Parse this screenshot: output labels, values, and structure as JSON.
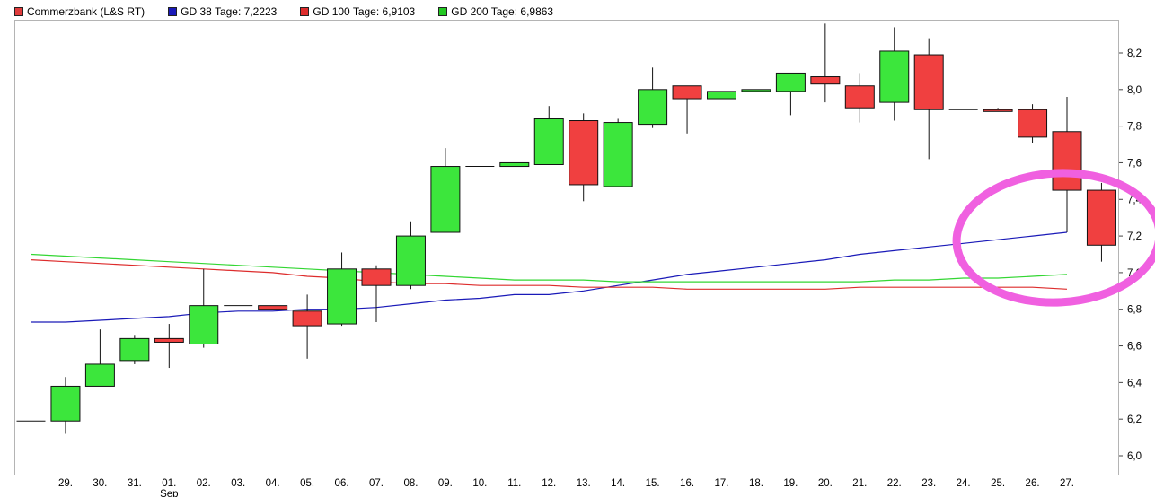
{
  "legend": {
    "main": {
      "label": "Commerzbank (L&S RT)",
      "color": "#e03c3c"
    },
    "ma38": {
      "label": "GD 38 Tage: 7,2223",
      "color": "#1a1ab8"
    },
    "ma100": {
      "label": "GD 100 Tage: 6,9103",
      "color": "#dd2c2c"
    },
    "ma200": {
      "label": "GD 200 Tage: 6,9863",
      "color": "#22c822"
    }
  },
  "colors": {
    "up": "#3ce63c",
    "down": "#f04040",
    "ma38": "#1a1ab8",
    "ma100": "#dd2c2c",
    "ma200": "#33d633",
    "annotation": "#f060e0",
    "grid": "#dcdcdc"
  },
  "chart_data": {
    "type": "candlestick",
    "y_ticks": [
      "6,0",
      "6,2",
      "6,4",
      "6,6",
      "6,8",
      "7,0",
      "7,2",
      "7,4",
      "7,6",
      "7,8",
      "8,0",
      "8,2"
    ],
    "ylim": [
      5.96,
      8.36
    ],
    "x_ticks": [
      "29.",
      "30.",
      "31.",
      "01.",
      "02.",
      "03.",
      "04.",
      "05.",
      "06.",
      "07.",
      "08.",
      "09.",
      "10.",
      "11.",
      "12.",
      "13.",
      "14.",
      "15.",
      "16.",
      "17.",
      "18.",
      "19.",
      "20.",
      "21.",
      "22.",
      "23.",
      "24.",
      "25.",
      "26.",
      "27."
    ],
    "month_marker": {
      "under": "01.",
      "label": "Sep"
    },
    "series_candles": [
      {
        "x": "28.",
        "open": 6.19,
        "high": 6.19,
        "low": 6.19,
        "close": 6.19
      },
      {
        "x": "29.",
        "open": 6.19,
        "high": 6.43,
        "low": 6.12,
        "close": 6.38
      },
      {
        "x": "30.",
        "open": 6.38,
        "high": 6.69,
        "low": 6.38,
        "close": 6.5
      },
      {
        "x": "31.",
        "open": 6.52,
        "high": 6.66,
        "low": 6.5,
        "close": 6.64
      },
      {
        "x": "01.",
        "open": 6.64,
        "high": 6.72,
        "low": 6.48,
        "close": 6.62
      },
      {
        "x": "02.",
        "open": 6.61,
        "high": 7.02,
        "low": 6.59,
        "close": 6.82
      },
      {
        "x": "03.",
        "open": 6.82,
        "high": 6.82,
        "low": 6.82,
        "close": 6.82
      },
      {
        "x": "04.",
        "open": 6.82,
        "high": 6.82,
        "low": 6.8,
        "close": 6.8
      },
      {
        "x": "05.",
        "open": 6.79,
        "high": 6.88,
        "low": 6.53,
        "close": 6.71
      },
      {
        "x": "06.",
        "open": 6.72,
        "high": 7.11,
        "low": 6.71,
        "close": 7.02
      },
      {
        "x": "07.",
        "open": 7.02,
        "high": 7.04,
        "low": 6.73,
        "close": 6.93
      },
      {
        "x": "08.",
        "open": 6.93,
        "high": 7.28,
        "low": 6.91,
        "close": 7.2
      },
      {
        "x": "09.",
        "open": 7.22,
        "high": 7.68,
        "low": 7.22,
        "close": 7.58
      },
      {
        "x": "10.",
        "open": 7.58,
        "high": 7.58,
        "low": 7.58,
        "close": 7.58
      },
      {
        "x": "11.",
        "open": 7.58,
        "high": 7.6,
        "low": 7.58,
        "close": 7.6
      },
      {
        "x": "12.",
        "open": 7.59,
        "high": 7.91,
        "low": 7.59,
        "close": 7.84
      },
      {
        "x": "13.",
        "open": 7.83,
        "high": 7.87,
        "low": 7.39,
        "close": 7.48
      },
      {
        "x": "14.",
        "open": 7.47,
        "high": 7.84,
        "low": 7.47,
        "close": 7.82
      },
      {
        "x": "15.",
        "open": 7.81,
        "high": 8.12,
        "low": 7.79,
        "close": 8.0
      },
      {
        "x": "16.",
        "open": 8.02,
        "high": 8.02,
        "low": 7.76,
        "close": 7.95
      },
      {
        "x": "17.",
        "open": 7.95,
        "high": 7.99,
        "low": 7.95,
        "close": 7.99
      },
      {
        "x": "18.",
        "open": 7.99,
        "high": 8.0,
        "low": 7.99,
        "close": 8.0
      },
      {
        "x": "19.",
        "open": 7.99,
        "high": 8.09,
        "low": 7.86,
        "close": 8.09
      },
      {
        "x": "20.",
        "open": 8.07,
        "high": 8.36,
        "low": 7.93,
        "close": 8.03
      },
      {
        "x": "21.",
        "open": 8.02,
        "high": 8.09,
        "low": 7.82,
        "close": 7.9
      },
      {
        "x": "22.",
        "open": 7.93,
        "high": 8.34,
        "low": 7.83,
        "close": 8.21
      },
      {
        "x": "23.",
        "open": 8.19,
        "high": 8.28,
        "low": 7.62,
        "close": 7.89
      },
      {
        "x": "24.",
        "open": 7.89,
        "high": 7.89,
        "low": 7.89,
        "close": 7.89
      },
      {
        "x": "25.",
        "open": 7.89,
        "high": 7.9,
        "low": 7.88,
        "close": 7.88
      },
      {
        "x": "26.",
        "open": 7.89,
        "high": 7.92,
        "low": 7.71,
        "close": 7.74
      },
      {
        "x": "27.",
        "open": 7.77,
        "high": 7.96,
        "low": 7.22,
        "close": 7.45
      },
      {
        "x": "28.",
        "open": 7.45,
        "high": 7.49,
        "low": 7.06,
        "close": 7.15
      }
    ],
    "series": [
      {
        "name": "GD 38 Tage",
        "values": [
          6.73,
          6.73,
          6.74,
          6.75,
          6.76,
          6.78,
          6.79,
          6.79,
          6.8,
          6.8,
          6.81,
          6.83,
          6.85,
          6.86,
          6.88,
          6.88,
          6.9,
          6.93,
          6.96,
          6.99,
          7.01,
          7.03,
          7.05,
          7.07,
          7.1,
          7.12,
          7.14,
          7.16,
          7.18,
          7.2,
          7.22
        ]
      },
      {
        "name": "GD 100 Tage",
        "values": [
          7.07,
          7.06,
          7.05,
          7.04,
          7.03,
          7.02,
          7.01,
          7.0,
          6.98,
          6.97,
          6.95,
          6.94,
          6.94,
          6.93,
          6.93,
          6.93,
          6.92,
          6.92,
          6.92,
          6.91,
          6.91,
          6.91,
          6.91,
          6.91,
          6.92,
          6.92,
          6.92,
          6.92,
          6.92,
          6.92,
          6.91
        ]
      },
      {
        "name": "GD 200 Tage",
        "values": [
          7.1,
          7.09,
          7.08,
          7.07,
          7.06,
          7.05,
          7.04,
          7.03,
          7.02,
          7.01,
          7.0,
          6.99,
          6.98,
          6.97,
          6.96,
          6.96,
          6.96,
          6.95,
          6.95,
          6.95,
          6.95,
          6.95,
          6.95,
          6.95,
          6.95,
          6.96,
          6.96,
          6.97,
          6.97,
          6.98,
          6.99
        ]
      }
    ]
  }
}
